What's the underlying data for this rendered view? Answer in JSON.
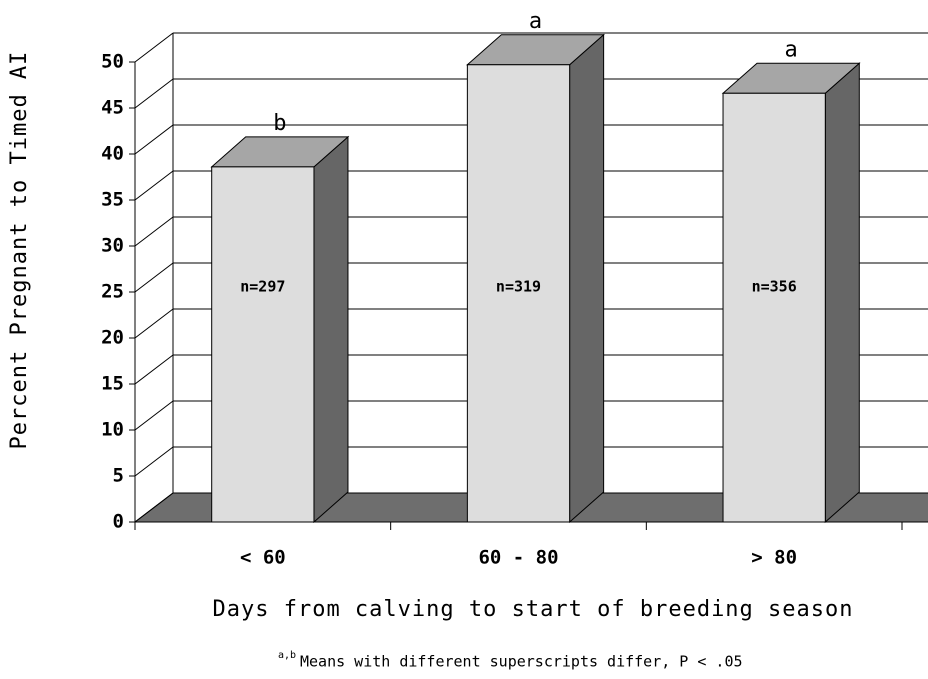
{
  "chart_data": {
    "type": "bar3d",
    "y_label": "Percent Pregnant to Timed AI",
    "x_label": "Days from calving to start of breeding season",
    "footnote_superscript": "a,b",
    "footnote": "Means with different superscripts differ, P < .05",
    "categories": [
      "< 60",
      "60 - 80",
      "> 80"
    ],
    "values": [
      38.6,
      49.7,
      46.6
    ],
    "annotations": [
      "b",
      "a",
      "a"
    ],
    "sample_sizes": [
      "n=297",
      "n=319",
      "n=356"
    ],
    "colors": {
      "front": "#dddddd",
      "top": "#a6a6a6",
      "side": "#666666",
      "floor": "#6e6e6e"
    },
    "ylim": [
      0,
      50
    ],
    "yticks": [
      0,
      5,
      10,
      15,
      20,
      25,
      30,
      35,
      40,
      45,
      50
    ],
    "grid": true
  }
}
